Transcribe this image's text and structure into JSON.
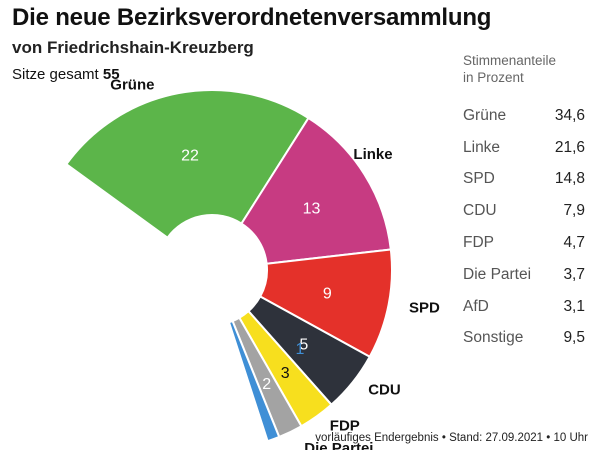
{
  "header": {
    "title": "Die neue Bezirksverordnetenversammlung",
    "subtitle": "von Friedrichshain-Kreuzberg",
    "seats_label": "Sitze gesamt",
    "seats_total": "55"
  },
  "chart_data": {
    "type": "pie",
    "subtype": "half-donut seat distribution",
    "total_seats": 55,
    "series": [
      {
        "name": "Grüne",
        "seats": 22,
        "color": "#5cb54a"
      },
      {
        "name": "Linke",
        "seats": 13,
        "color": "#c73b82"
      },
      {
        "name": "SPD",
        "seats": 9,
        "color": "#e4312a"
      },
      {
        "name": "CDU",
        "seats": 5,
        "color": "#2e323b"
      },
      {
        "name": "FDP",
        "seats": 3,
        "color": "#f7df1e"
      },
      {
        "name": "Die Partei",
        "seats": 2,
        "color": "#a3a3a3"
      },
      {
        "name": "AfD",
        "seats": 1,
        "color": "#3f8fd6"
      }
    ]
  },
  "table": {
    "heading_line1": "Stimmenanteile",
    "heading_line2": "in Prozent",
    "rows": [
      {
        "party": "Grüne",
        "value": "34,6"
      },
      {
        "party": "Linke",
        "value": "21,6"
      },
      {
        "party": "SPD",
        "value": "14,8"
      },
      {
        "party": "CDU",
        "value": "7,9"
      },
      {
        "party": "FDP",
        "value": "4,7"
      },
      {
        "party": "Die Partei",
        "value": "3,7"
      },
      {
        "party": "AfD",
        "value": "3,1"
      },
      {
        "party": "Sonstige",
        "value": "9,5"
      }
    ]
  },
  "footer": "vorläufiges Endergebnis • Stand: 27.09.2021 • 10 Uhr"
}
